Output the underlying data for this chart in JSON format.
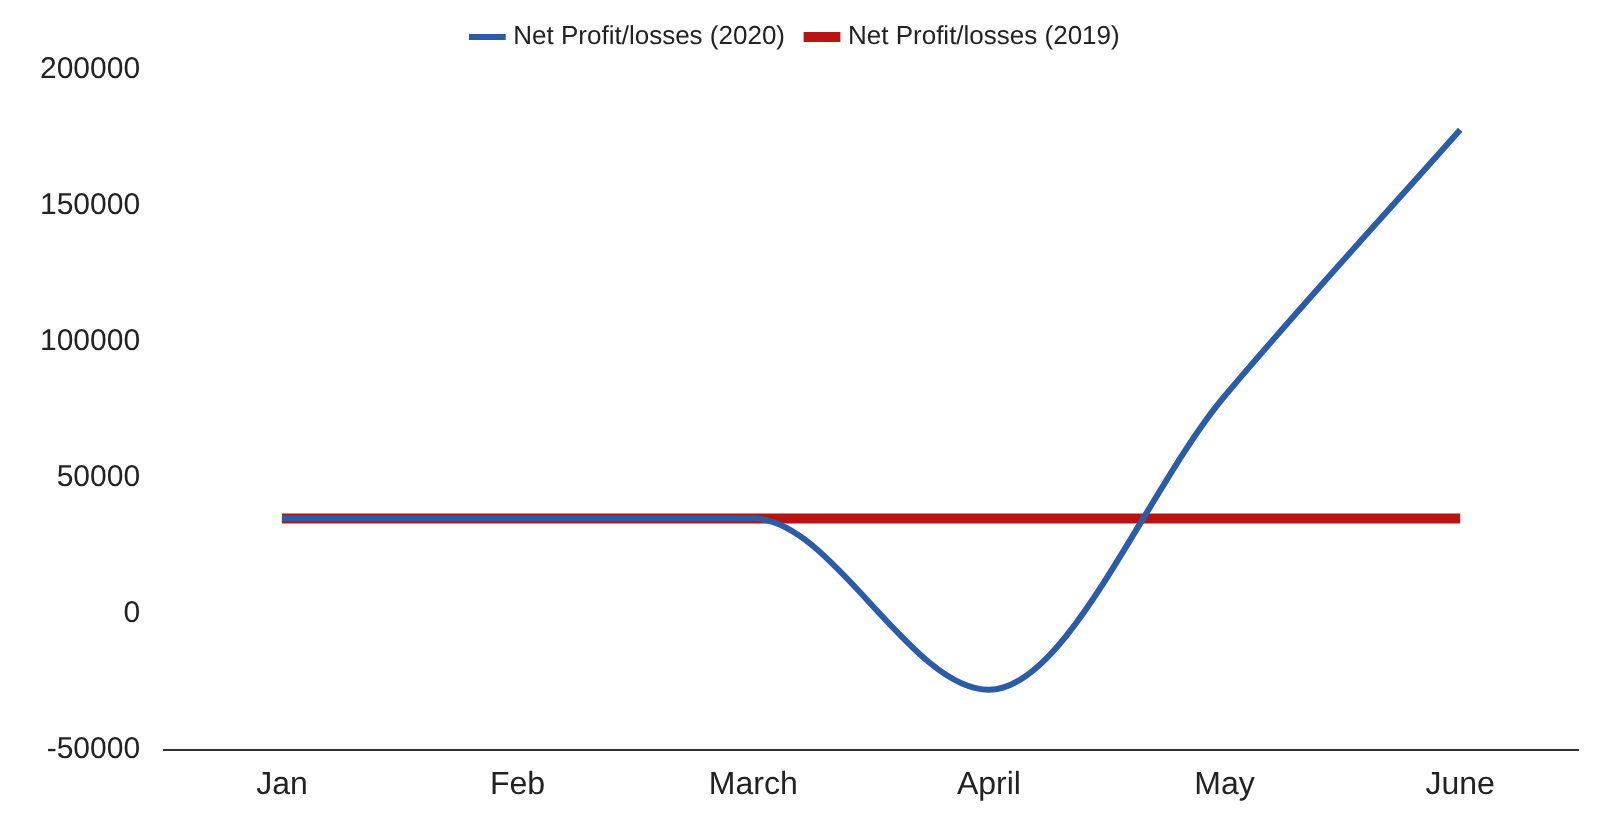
{
  "chart_data": {
    "type": "line",
    "categories": [
      "Jan",
      "Feb",
      "March",
      "April",
      "May",
      "June"
    ],
    "series": [
      {
        "name": "Net Profit/losses (2020)",
        "color": "#2a5ca8",
        "values": [
          35000,
          35000,
          35000,
          -28000,
          80000,
          178000
        ]
      },
      {
        "name": "Net Profit/losses (2019)",
        "color": "#b81414",
        "values": [
          35000,
          35000,
          35000,
          35000,
          35000,
          35000
        ]
      }
    ],
    "ylim": [
      -50000,
      200000
    ],
    "yticks": [
      -50000,
      0,
      50000,
      100000,
      150000,
      200000
    ],
    "grid": false,
    "legend": "top",
    "marker": "none",
    "line_style": "solid"
  }
}
